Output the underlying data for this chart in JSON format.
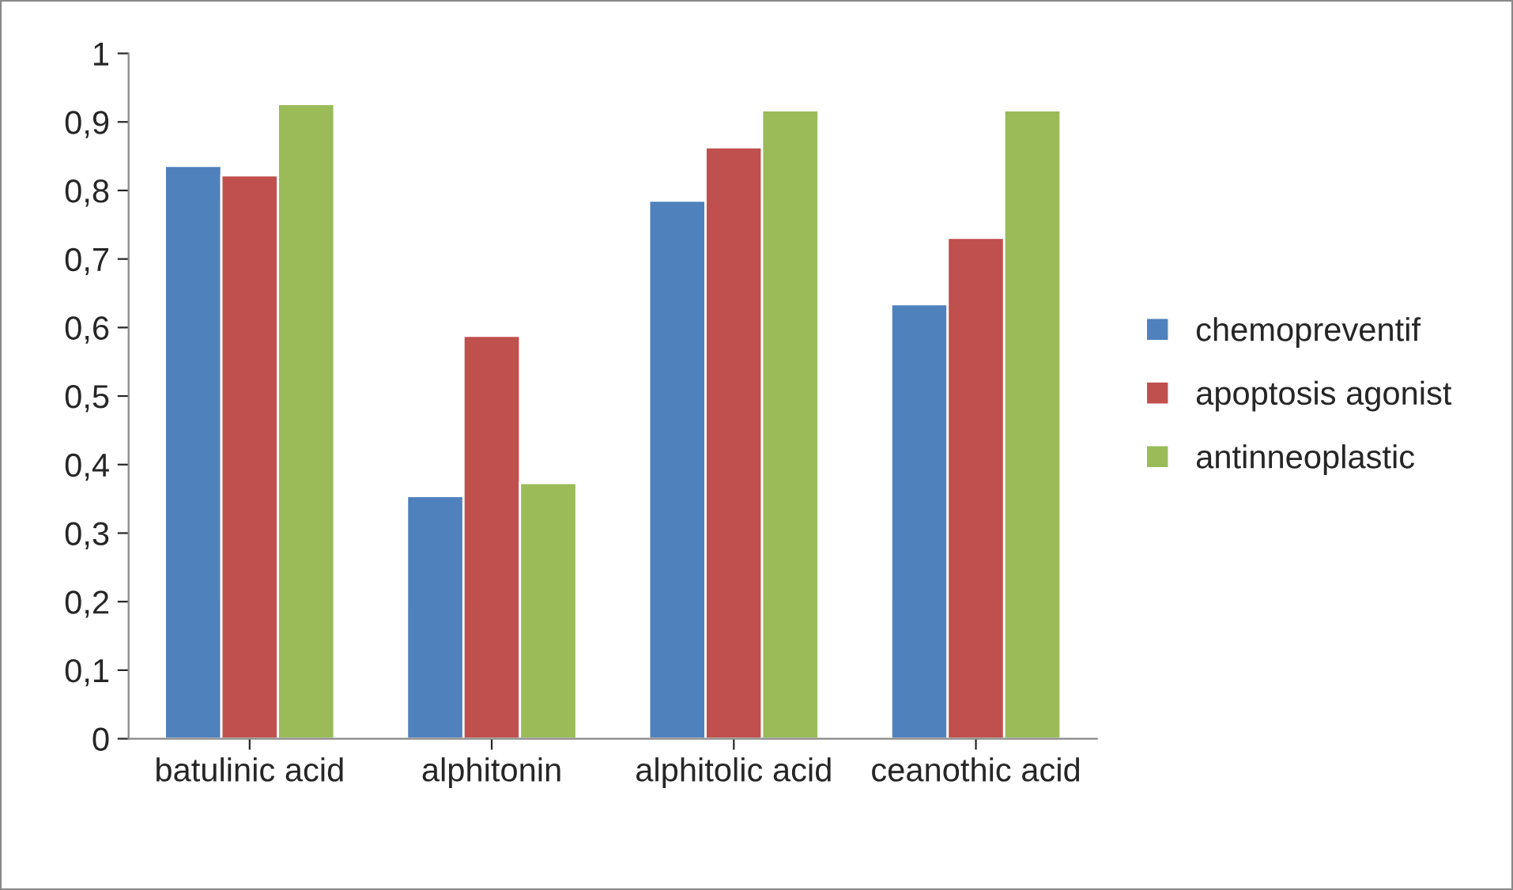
{
  "chart_data": {
    "type": "bar",
    "categories": [
      "batulinic acid",
      "alphitonin",
      "alphitolic acid",
      "ceanothic acid"
    ],
    "series": [
      {
        "name": "chemopreventif",
        "color": "#4f81bd",
        "values": [
          0.836,
          0.354,
          0.785,
          0.634
        ]
      },
      {
        "name": "apoptosis agonist",
        "color": "#c0504d",
        "values": [
          0.822,
          0.588,
          0.863,
          0.731
        ]
      },
      {
        "name": "antinneoplastic",
        "color": "#9bbb59",
        "values": [
          0.926,
          0.373,
          0.917,
          0.917
        ]
      }
    ],
    "ylim": [
      0,
      1
    ],
    "yticks": [
      0,
      {
        "value": 0.1,
        "label": "0,1"
      },
      {
        "value": 0.2,
        "label": "0,2"
      },
      {
        "value": 0.3,
        "label": "0,3"
      },
      {
        "value": 0.4,
        "label": "0,4"
      },
      {
        "value": 0.5,
        "label": "0,5"
      },
      {
        "value": 0.6,
        "label": "0,6"
      },
      {
        "value": 0.7,
        "label": "0,7"
      },
      {
        "value": 0.8,
        "label": "0,8"
      },
      {
        "value": 0.9,
        "label": "0,9"
      },
      1
    ],
    "grid": false,
    "legend": "right"
  }
}
